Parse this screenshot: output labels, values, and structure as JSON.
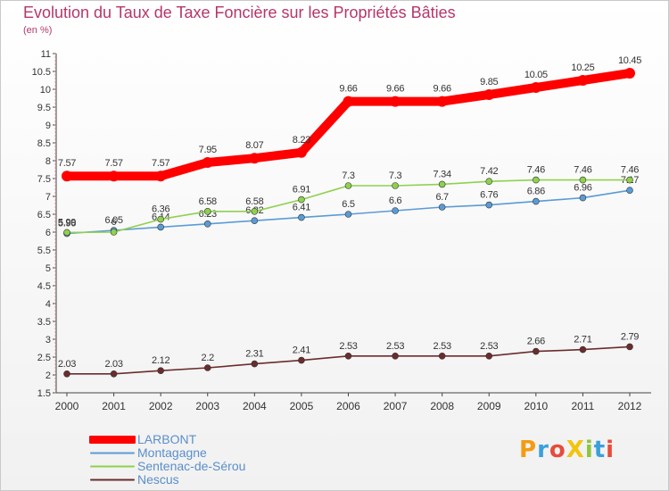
{
  "header": {
    "title": "Evolution du Taux de Taxe Foncière sur les Propriétés Bâties",
    "unit": "(en %)"
  },
  "logo": {
    "text": "ProXiti",
    "colors": [
      "#f39c12",
      "#3aa0dc",
      "#e74c3c",
      "#f1c40f",
      "#8cc63f",
      "#3aa0dc",
      "#e74c3c"
    ]
  },
  "chart_data": {
    "type": "line",
    "title": "Evolution du Taux de Taxe Foncière sur les Propriétés Bâties",
    "ylabel": "(en %)",
    "xlabel": "",
    "x": [
      "2000",
      "2001",
      "2002",
      "2003",
      "2004",
      "2005",
      "2006",
      "2007",
      "2008",
      "2009",
      "2010",
      "2011",
      "2012"
    ],
    "ylim": [
      1.5,
      11
    ],
    "yticks": [
      "1.5",
      "2",
      "2.5",
      "3",
      "3.5",
      "4",
      "4.5",
      "5",
      "5.5",
      "6",
      "6.5",
      "7",
      "7.5",
      "8",
      "8.5",
      "9",
      "9.5",
      "10",
      "10.5",
      "11"
    ],
    "grid": false,
    "legend_position": "bottom-left",
    "series": [
      {
        "name": "LARBONT",
        "color": "#ff0000",
        "values": [
          7.57,
          7.57,
          7.57,
          7.95,
          8.07,
          8.23,
          9.66,
          9.66,
          9.66,
          9.85,
          10.05,
          10.25,
          10.45
        ],
        "labels": [
          "7.57",
          "7.57",
          "7.57",
          "7.95",
          "8.07",
          "8.23",
          "9.66",
          "9.66",
          "9.66",
          "9.85",
          "10.05",
          "10.25",
          "10.45"
        ]
      },
      {
        "name": "Montagagne",
        "color": "#5a9bd5",
        "values": [
          5.96,
          6.05,
          6.14,
          6.23,
          6.32,
          6.41,
          6.5,
          6.6,
          6.7,
          6.76,
          6.86,
          6.96,
          7.17
        ],
        "labels": [
          "5.96",
          "6.05",
          "6.14",
          "6.23",
          "6.32",
          "6.41",
          "6.5",
          "6.6",
          "6.7",
          "6.76",
          "6.86",
          "6.96",
          "7.17"
        ]
      },
      {
        "name": "Sentenac-de-Sérou",
        "color": "#8fd14f",
        "values": [
          5.99,
          6.0,
          6.36,
          6.58,
          6.58,
          6.91,
          7.3,
          7.3,
          7.34,
          7.42,
          7.46,
          7.46,
          7.46
        ],
        "labels": [
          "5.99",
          "6",
          "6.36",
          "6.58",
          "6.58",
          "6.91",
          "7.3",
          "7.3",
          "7.34",
          "7.42",
          "7.46",
          "7.46",
          "7.46"
        ]
      },
      {
        "name": "Nescus",
        "color": "#6b2c2c",
        "values": [
          2.03,
          2.03,
          2.12,
          2.2,
          2.31,
          2.41,
          2.53,
          2.53,
          2.53,
          2.53,
          2.66,
          2.71,
          2.79
        ],
        "labels": [
          "2.03",
          "2.03",
          "2.12",
          "2.2",
          "2.31",
          "2.41",
          "2.53",
          "2.53",
          "2.53",
          "2.53",
          "2.66",
          "2.71",
          "2.79"
        ]
      }
    ]
  }
}
